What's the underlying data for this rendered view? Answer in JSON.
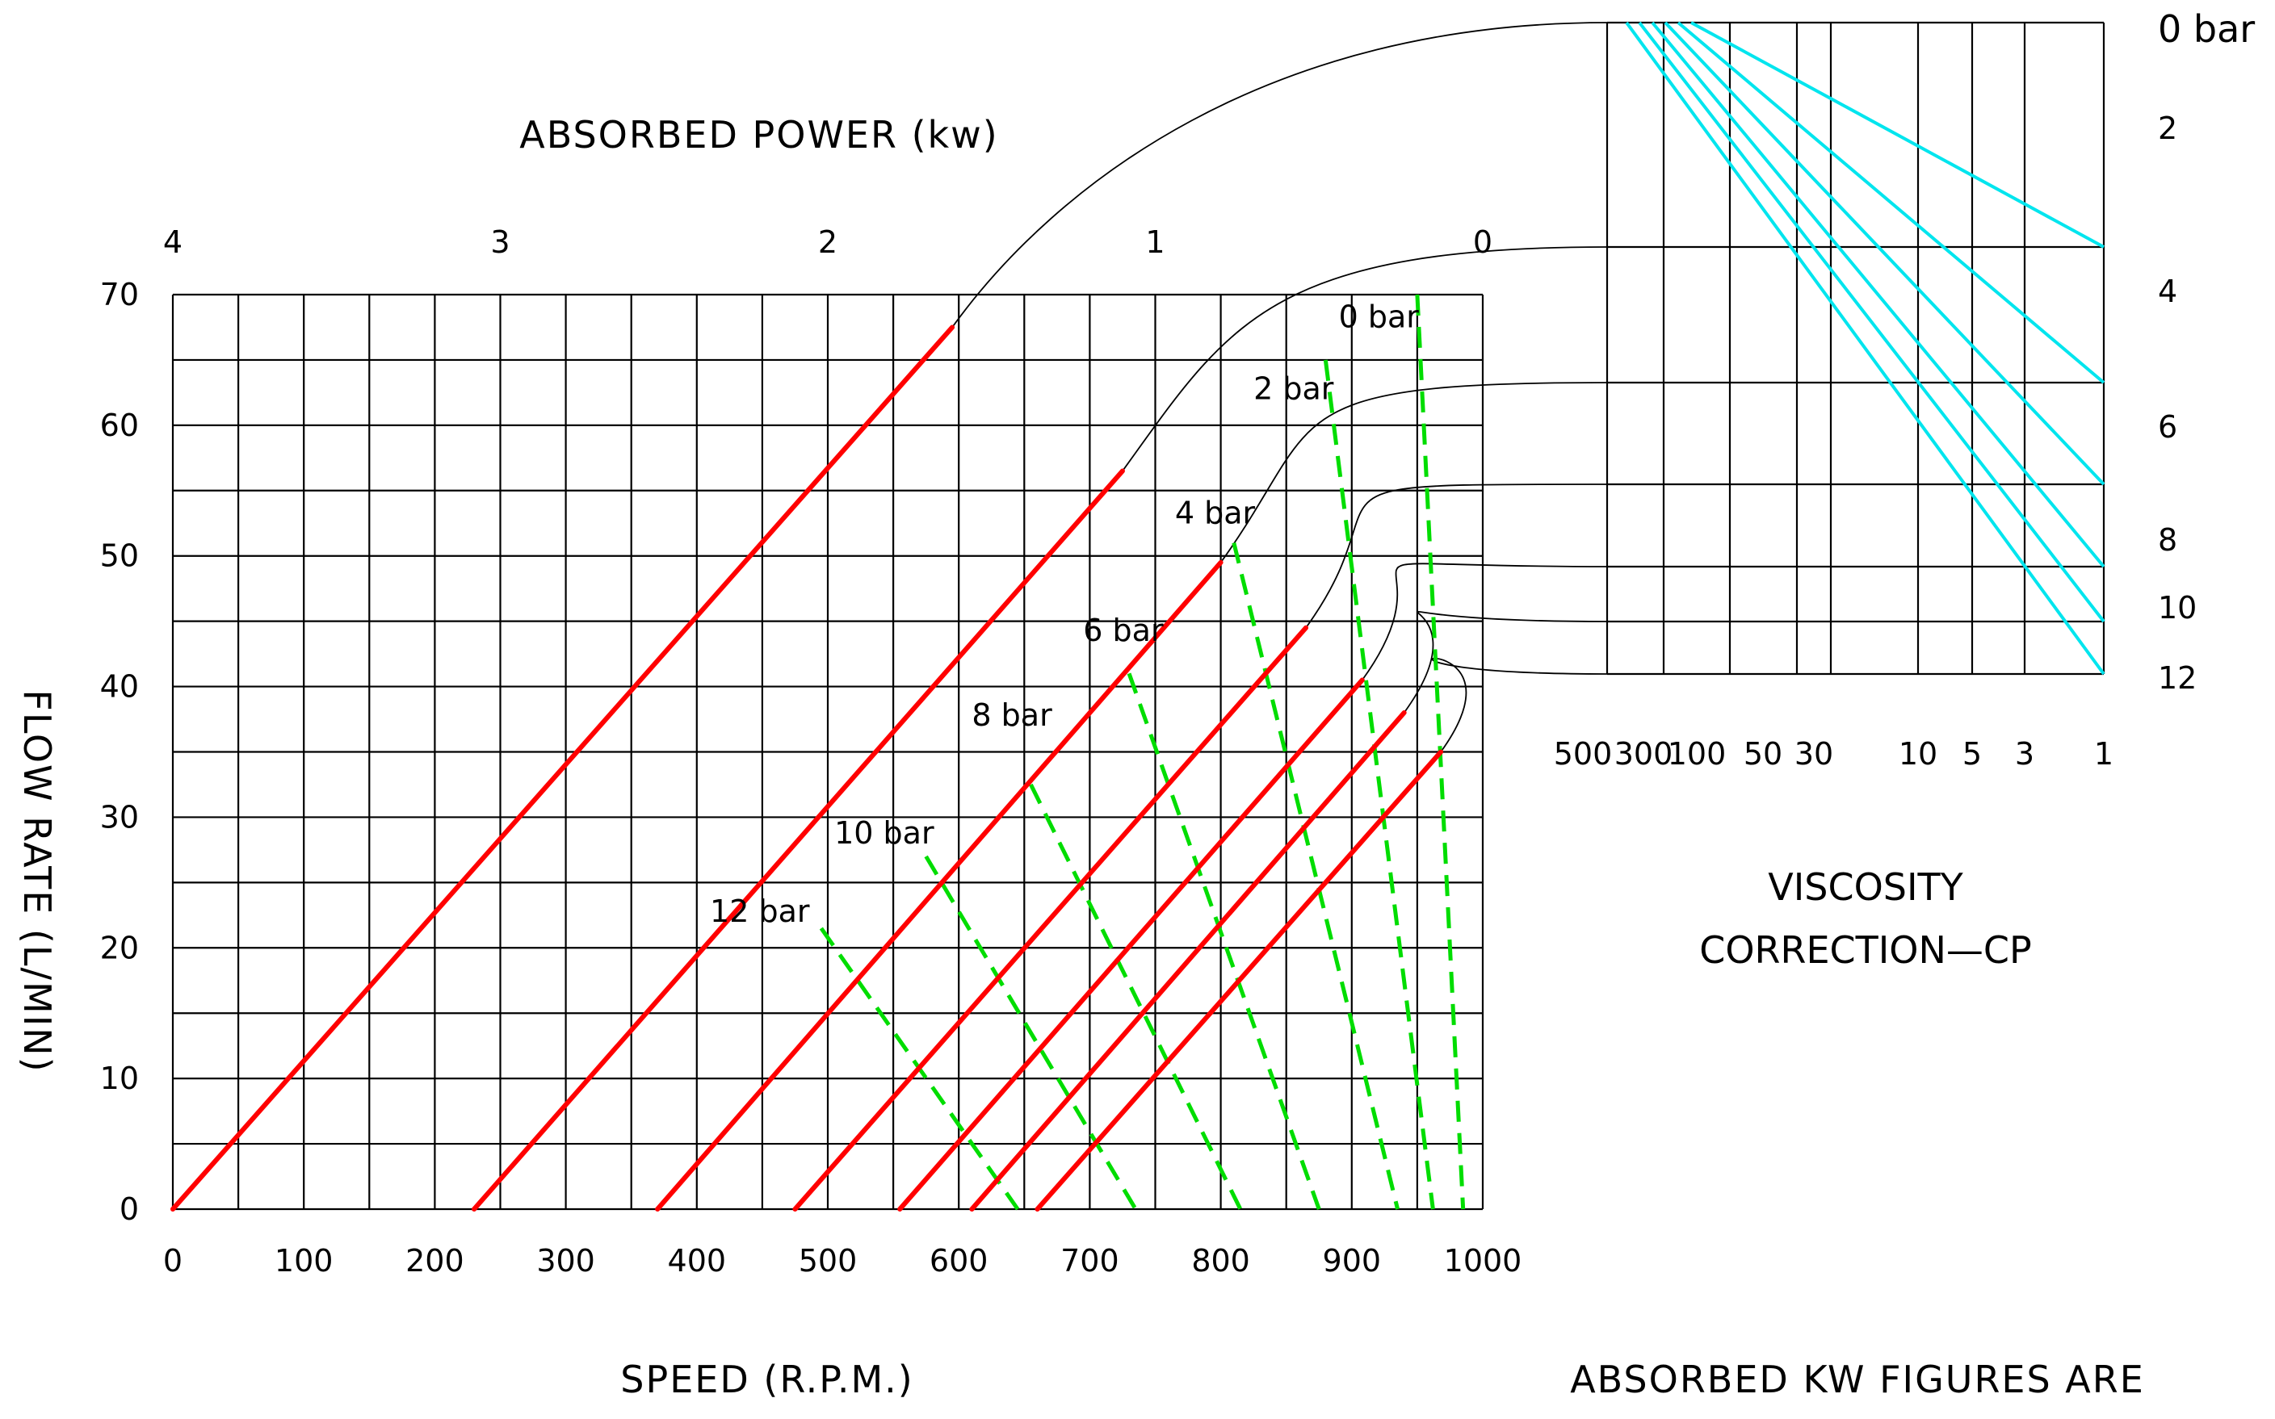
{
  "chart_data": {
    "type": "line",
    "title": "ABSORBED POWER (kw)",
    "xlabel": "SPEED (R.P.M.)",
    "ylabel": "FLOW RATE (L/MIN)",
    "xlim": [
      0,
      1000
    ],
    "ylim": [
      0,
      70
    ],
    "x_ticks": [
      "0",
      "100",
      "200",
      "300",
      "400",
      "500",
      "600",
      "700",
      "800",
      "900",
      "1000"
    ],
    "y_ticks": [
      "0",
      "10",
      "20",
      "30",
      "40",
      "50",
      "60",
      "70"
    ],
    "power_scale": {
      "ticks": [
        {
          "label": "4",
          "speed": 0
        },
        {
          "label": "3",
          "speed": 250
        },
        {
          "label": "2",
          "speed": 500
        },
        {
          "label": "1",
          "speed": 750
        },
        {
          "label": "0",
          "speed": 1000
        }
      ]
    },
    "flow_lines": [
      {
        "name": "0 bar",
        "label": "0 bar",
        "x0": 0,
        "x1": 595,
        "y1": 67.5
      },
      {
        "name": "2 bar",
        "label": "2 bar",
        "x0": 230,
        "x1": 725,
        "y1": 56.5
      },
      {
        "name": "4 bar",
        "label": "4 bar",
        "x0": 370,
        "x1": 800,
        "y1": 49.5
      },
      {
        "name": "6 bar",
        "label": "6 bar",
        "x0": 475,
        "x1": 865,
        "y1": 44.5
      },
      {
        "name": "8 bar",
        "label": "8 bar",
        "x0": 555,
        "x1": 908,
        "y1": 40.5
      },
      {
        "name": "10 bar",
        "label": "10 bar",
        "x0": 610,
        "x1": 940,
        "y1": 38
      },
      {
        "name": "12 bar",
        "label": "12 bar",
        "x0": 660,
        "x1": 968,
        "y1": 35
      }
    ],
    "power_lines": [
      {
        "from": [
          950,
          70
        ],
        "to": [
          985,
          0
        ]
      },
      {
        "from": [
          880,
          65
        ],
        "to": [
          962,
          0
        ]
      },
      {
        "from": [
          810,
          51
        ],
        "to": [
          935,
          0
        ]
      },
      {
        "from": [
          730,
          41
        ],
        "to": [
          875,
          0
        ]
      },
      {
        "from": [
          655,
          32.5
        ],
        "to": [
          815,
          0
        ]
      },
      {
        "from": [
          575,
          27
        ],
        "to": [
          735,
          0
        ]
      },
      {
        "from": [
          495,
          21.5
        ],
        "to": [
          645,
          0
        ]
      }
    ],
    "viscosity_correction": {
      "title_lines": [
        "VISCOSITY",
        "CORRECTION—CP"
      ],
      "x_ticks": [
        "500",
        "300",
        "100",
        "50",
        "30",
        "10",
        "5",
        "3",
        "1"
      ],
      "pressure_labels": [
        "0 bar",
        "2",
        "4",
        "6",
        "8",
        "10",
        "12"
      ],
      "lines_end_pressure": [
        "12",
        "10",
        "8",
        "6",
        "4",
        "2"
      ]
    },
    "footnote": "ABSORBED KW FIGURES ARE"
  },
  "colors": {
    "flow": "#ff0000",
    "power": "#00dd00",
    "viscosity": "#00e5ee",
    "grid": "#000000"
  }
}
